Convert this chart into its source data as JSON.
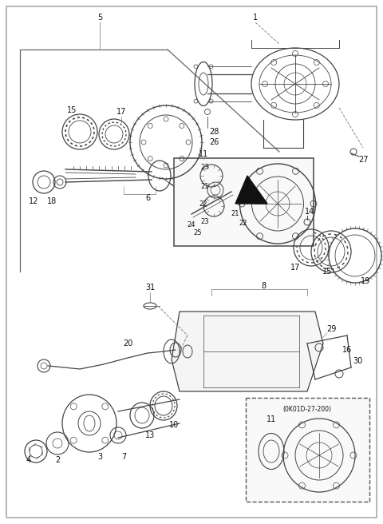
{
  "bg_color": "#ffffff",
  "line_color": "#444444",
  "text_color": "#111111",
  "figsize": [
    4.8,
    6.56
  ],
  "dpi": 100,
  "border_color": "#888888",
  "diagonal_color": "#555555"
}
